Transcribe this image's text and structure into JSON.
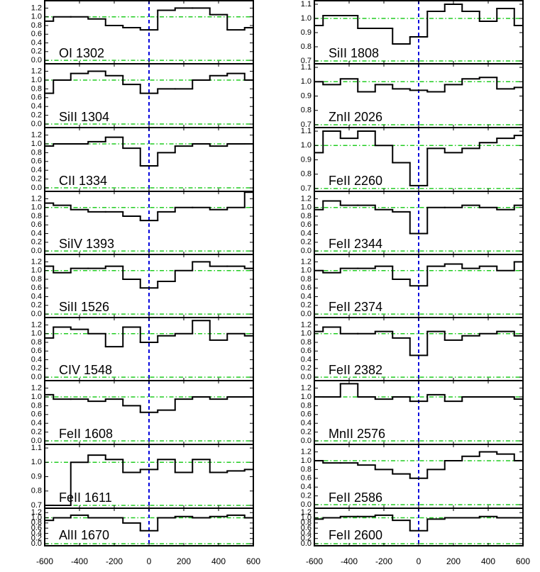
{
  "chart_data": [
    {
      "type": "line",
      "label": "OI 1302",
      "x": [
        -600,
        -500,
        -400,
        -300,
        -200,
        -100,
        0,
        100,
        200,
        300,
        400,
        500,
        600
      ],
      "values": [
        0.9,
        1.0,
        1.0,
        0.95,
        0.8,
        0.75,
        0.7,
        1.15,
        1.2,
        1.2,
        1.05,
        0.7,
        0.75
      ],
      "xlim": [
        -600,
        600
      ],
      "xticks": [
        -600,
        -400,
        -200,
        0,
        200,
        400,
        600
      ],
      "ylim": [
        -0.08,
        1.37
      ],
      "yticks": [
        0.0,
        0.2,
        0.4,
        0.6,
        0.8,
        1.0,
        1.2
      ],
      "hlines": [
        0.0,
        1.0
      ],
      "vline": 0
    },
    {
      "type": "line",
      "label": "SiII 1304",
      "x": [
        -600,
        -500,
        -400,
        -300,
        -200,
        -100,
        0,
        100,
        200,
        300,
        400,
        500,
        600
      ],
      "values": [
        0.7,
        1.0,
        1.15,
        1.2,
        1.1,
        0.9,
        0.7,
        0.8,
        0.8,
        1.0,
        1.1,
        1.15,
        1.0
      ],
      "xlim": [
        -600,
        600
      ],
      "xticks": [
        -600,
        -400,
        -200,
        0,
        200,
        400,
        600
      ],
      "ylim": [
        -0.08,
        1.37
      ],
      "yticks": [
        0.0,
        0.2,
        0.4,
        0.6,
        0.8,
        1.0,
        1.2
      ],
      "hlines": [
        0.0,
        1.0
      ],
      "vline": 0
    },
    {
      "type": "line",
      "label": "CII 1334",
      "x": [
        -600,
        -500,
        -400,
        -300,
        -200,
        -100,
        0,
        100,
        200,
        300,
        400,
        500,
        600
      ],
      "values": [
        0.95,
        1.0,
        1.0,
        1.05,
        1.15,
        0.9,
        0.5,
        0.8,
        0.95,
        1.0,
        0.95,
        1.0,
        1.0
      ],
      "xlim": [
        -600,
        600
      ],
      "xticks": [
        -600,
        -400,
        -200,
        0,
        200,
        400,
        600
      ],
      "ylim": [
        -0.08,
        1.37
      ],
      "yticks": [
        0.0,
        0.2,
        0.4,
        0.6,
        0.8,
        1.0,
        1.2
      ],
      "hlines": [
        0.0,
        1.0
      ],
      "vline": 0
    },
    {
      "type": "line",
      "label": "SiIV 1393",
      "x": [
        -600,
        -500,
        -400,
        -300,
        -200,
        -100,
        0,
        100,
        200,
        300,
        400,
        500,
        600
      ],
      "values": [
        1.1,
        1.05,
        0.95,
        0.9,
        0.9,
        0.8,
        0.7,
        0.9,
        1.0,
        1.0,
        0.95,
        1.0,
        1.35
      ],
      "xlim": [
        -600,
        600
      ],
      "xticks": [
        -600,
        -400,
        -200,
        0,
        200,
        400,
        600
      ],
      "ylim": [
        -0.08,
        1.37
      ],
      "yticks": [
        0.0,
        0.2,
        0.4,
        0.6,
        0.8,
        1.0,
        1.2
      ],
      "hlines": [
        0.0,
        1.0
      ],
      "vline": 0
    },
    {
      "type": "line",
      "label": "SiII 1526",
      "x": [
        -600,
        -500,
        -400,
        -300,
        -200,
        -100,
        0,
        100,
        200,
        300,
        400,
        500,
        600
      ],
      "values": [
        1.1,
        0.95,
        1.05,
        1.05,
        1.1,
        0.8,
        0.6,
        0.75,
        1.0,
        1.2,
        1.1,
        1.1,
        1.05
      ],
      "xlim": [
        -600,
        600
      ],
      "xticks": [
        -600,
        -400,
        -200,
        0,
        200,
        400,
        600
      ],
      "ylim": [
        -0.08,
        1.37
      ],
      "yticks": [
        0.0,
        0.2,
        0.4,
        0.6,
        0.8,
        1.0,
        1.2
      ],
      "hlines": [
        0.0,
        1.0
      ],
      "vline": 0
    },
    {
      "type": "line",
      "label": "CIV 1548",
      "x": [
        -600,
        -500,
        -400,
        -300,
        -200,
        -100,
        0,
        100,
        200,
        300,
        400,
        500,
        600
      ],
      "values": [
        0.9,
        1.15,
        1.1,
        1.0,
        0.7,
        1.15,
        0.8,
        0.95,
        1.0,
        1.3,
        0.85,
        1.0,
        0.95
      ],
      "xlim": [
        -600,
        600
      ],
      "xticks": [
        -600,
        -400,
        -200,
        0,
        200,
        400,
        600
      ],
      "ylim": [
        -0.08,
        1.37
      ],
      "yticks": [
        0.0,
        0.2,
        0.4,
        0.6,
        0.8,
        1.0,
        1.2
      ],
      "hlines": [
        0.0,
        1.0
      ],
      "vline": 0
    },
    {
      "type": "line",
      "label": "FeII 1608",
      "x": [
        -600,
        -500,
        -400,
        -300,
        -200,
        -100,
        0,
        100,
        200,
        300,
        400,
        500,
        600
      ],
      "values": [
        1.05,
        0.95,
        0.95,
        0.9,
        0.95,
        0.8,
        0.65,
        0.7,
        0.95,
        1.0,
        0.95,
        1.0,
        1.0
      ],
      "xlim": [
        -600,
        600
      ],
      "xticks": [
        -600,
        -400,
        -200,
        0,
        200,
        400,
        600
      ],
      "ylim": [
        -0.08,
        1.37
      ],
      "yticks": [
        0.0,
        0.2,
        0.4,
        0.6,
        0.8,
        1.0,
        1.2
      ],
      "hlines": [
        0.0,
        1.0
      ],
      "vline": 0
    },
    {
      "type": "line",
      "label": "FeII 1611",
      "x": [
        -600,
        -500,
        -400,
        -300,
        -200,
        -100,
        0,
        100,
        200,
        300,
        400,
        500,
        600
      ],
      "values": [
        0.7,
        0.7,
        1.0,
        1.05,
        1.02,
        0.93,
        0.95,
        1.02,
        0.93,
        1.02,
        0.93,
        0.94,
        0.95
      ],
      "xlim": [
        -600,
        600
      ],
      "xticks": [
        -600,
        -400,
        -200,
        0,
        200,
        400,
        600
      ],
      "ylim": [
        0.68,
        1.125
      ],
      "yticks": [
        0.7,
        0.8,
        0.9,
        1.0,
        1.1
      ],
      "hlines": [
        0.7,
        1.0
      ],
      "vline": 0
    },
    {
      "type": "line",
      "label": "AlII 1670",
      "x": [
        -600,
        -500,
        -400,
        -300,
        -200,
        -100,
        0,
        100,
        200,
        300,
        400,
        500,
        600
      ],
      "values": [
        0.9,
        1.0,
        1.1,
        1.0,
        1.0,
        0.8,
        0.5,
        1.0,
        1.05,
        1.0,
        1.05,
        1.1,
        1.0
      ],
      "xlim": [
        -600,
        600
      ],
      "xticks": [
        -600,
        -400,
        -200,
        0,
        200,
        400,
        600
      ],
      "ylim": [
        -0.08,
        1.37
      ],
      "yticks": [
        0.0,
        0.2,
        0.4,
        0.6,
        0.8,
        1.0,
        1.2
      ],
      "hlines": [
        0.0,
        1.0
      ],
      "vline": 0
    },
    {
      "type": "line",
      "label": "SiII 1808",
      "x": [
        -600,
        -500,
        -400,
        -300,
        -200,
        -100,
        0,
        100,
        200,
        300,
        400,
        500,
        600
      ],
      "values": [
        0.95,
        1.02,
        1.02,
        0.93,
        0.93,
        0.82,
        0.87,
        1.05,
        1.1,
        1.05,
        0.98,
        1.07,
        0.95
      ],
      "xlim": [
        -600,
        600
      ],
      "xticks": [
        -600,
        -400,
        -200,
        0,
        200,
        400,
        600
      ],
      "ylim": [
        0.68,
        1.125
      ],
      "yticks": [
        0.7,
        0.8,
        0.9,
        1.0,
        1.1
      ],
      "hlines": [
        0.7,
        1.0
      ],
      "vline": 0
    },
    {
      "type": "line",
      "label": "ZnII 2026",
      "x": [
        -600,
        -500,
        -400,
        -300,
        -200,
        -100,
        0,
        100,
        200,
        300,
        400,
        500,
        600
      ],
      "values": [
        1.0,
        0.98,
        1.02,
        0.93,
        0.98,
        0.95,
        0.94,
        0.93,
        0.98,
        1.02,
        1.03,
        0.95,
        0.96
      ],
      "xlim": [
        -600,
        600
      ],
      "xticks": [
        -600,
        -400,
        -200,
        0,
        200,
        400,
        600
      ],
      "ylim": [
        0.68,
        1.125
      ],
      "yticks": [
        0.7,
        0.8,
        0.9,
        1.0,
        1.1
      ],
      "hlines": [
        0.7,
        1.0
      ],
      "vline": 0
    },
    {
      "type": "line",
      "label": "FeII 2260",
      "x": [
        -600,
        -500,
        -400,
        -300,
        -200,
        -100,
        0,
        100,
        200,
        300,
        400,
        500,
        600
      ],
      "values": [
        0.95,
        1.1,
        1.05,
        1.1,
        1.0,
        0.88,
        0.72,
        0.98,
        0.95,
        0.98,
        1.02,
        1.05,
        1.07
      ],
      "xlim": [
        -600,
        600
      ],
      "xticks": [
        -600,
        -400,
        -200,
        0,
        200,
        400,
        600
      ],
      "ylim": [
        0.68,
        1.125
      ],
      "yticks": [
        0.7,
        0.8,
        0.9,
        1.0,
        1.1
      ],
      "hlines": [
        0.7,
        1.0
      ],
      "vline": 0
    },
    {
      "type": "line",
      "label": "FeII 2344",
      "x": [
        -600,
        -500,
        -400,
        -300,
        -200,
        -100,
        0,
        100,
        200,
        300,
        400,
        500,
        600
      ],
      "values": [
        0.95,
        1.15,
        1.05,
        1.05,
        0.95,
        0.9,
        0.4,
        1.0,
        1.0,
        1.05,
        1.0,
        0.95,
        1.05
      ],
      "xlim": [
        -600,
        600
      ],
      "xticks": [
        -600,
        -400,
        -200,
        0,
        200,
        400,
        600
      ],
      "ylim": [
        -0.08,
        1.37
      ],
      "yticks": [
        0.0,
        0.2,
        0.4,
        0.6,
        0.8,
        1.0,
        1.2
      ],
      "hlines": [
        0.0,
        1.0
      ],
      "vline": 0
    },
    {
      "type": "line",
      "label": "FeII 2374",
      "x": [
        -600,
        -500,
        -400,
        -300,
        -200,
        -100,
        0,
        100,
        200,
        300,
        400,
        500,
        600
      ],
      "values": [
        1.0,
        0.95,
        1.05,
        1.05,
        1.1,
        0.8,
        0.65,
        1.1,
        1.15,
        1.05,
        1.1,
        1.0,
        1.2
      ],
      "xlim": [
        -600,
        600
      ],
      "xticks": [
        -600,
        -400,
        -200,
        0,
        200,
        400,
        600
      ],
      "ylim": [
        -0.08,
        1.37
      ],
      "yticks": [
        0.0,
        0.2,
        0.4,
        0.6,
        0.8,
        1.0,
        1.2
      ],
      "hlines": [
        0.0,
        1.0
      ],
      "vline": 0
    },
    {
      "type": "line",
      "label": "FeII 2382",
      "x": [
        -600,
        -500,
        -400,
        -300,
        -200,
        -100,
        0,
        100,
        200,
        300,
        400,
        500,
        600
      ],
      "values": [
        1.05,
        1.15,
        1.0,
        1.0,
        1.05,
        0.9,
        0.5,
        1.05,
        0.85,
        0.95,
        1.0,
        1.05,
        0.95
      ],
      "xlim": [
        -600,
        600
      ],
      "xticks": [
        -600,
        -400,
        -200,
        0,
        200,
        400,
        600
      ],
      "ylim": [
        -0.08,
        1.37
      ],
      "yticks": [
        0.0,
        0.2,
        0.4,
        0.6,
        0.8,
        1.0,
        1.2
      ],
      "hlines": [
        0.0,
        1.0
      ],
      "vline": 0
    },
    {
      "type": "line",
      "label": "MnII 2576",
      "x": [
        -600,
        -500,
        -400,
        -300,
        -200,
        -100,
        0,
        100,
        200,
        300,
        400,
        500,
        600
      ],
      "values": [
        1.0,
        1.0,
        1.3,
        1.0,
        0.95,
        1.0,
        0.9,
        1.05,
        0.9,
        1.0,
        1.0,
        1.0,
        0.95
      ],
      "xlim": [
        -600,
        600
      ],
      "xticks": [
        -600,
        -400,
        -200,
        0,
        200,
        400,
        600
      ],
      "ylim": [
        -0.08,
        1.37
      ],
      "yticks": [
        0.0,
        0.2,
        0.4,
        0.6,
        0.8,
        1.0,
        1.2
      ],
      "hlines": [
        0.0,
        1.0
      ],
      "vline": 0
    },
    {
      "type": "line",
      "label": "FeII 2586",
      "x": [
        -600,
        -500,
        -400,
        -300,
        -200,
        -100,
        0,
        100,
        200,
        300,
        400,
        500,
        600
      ],
      "values": [
        1.0,
        0.95,
        0.95,
        0.9,
        0.8,
        0.7,
        0.6,
        0.8,
        1.0,
        1.1,
        1.2,
        1.15,
        1.0
      ],
      "xlim": [
        -600,
        600
      ],
      "xticks": [
        -600,
        -400,
        -200,
        0,
        200,
        400,
        600
      ],
      "ylim": [
        -0.08,
        1.37
      ],
      "yticks": [
        0.0,
        0.2,
        0.4,
        0.6,
        0.8,
        1.0,
        1.2
      ],
      "hlines": [
        0.0,
        1.0
      ],
      "vline": 0
    },
    {
      "type": "line",
      "label": "FeII 2600",
      "x": [
        -600,
        -500,
        -400,
        -300,
        -200,
        -100,
        0,
        100,
        200,
        300,
        400,
        500,
        600
      ],
      "values": [
        0.95,
        1.0,
        1.05,
        1.05,
        1.1,
        0.9,
        0.5,
        0.95,
        1.0,
        1.0,
        1.05,
        1.0,
        1.0
      ],
      "xlim": [
        -600,
        600
      ],
      "xticks": [
        -600,
        -400,
        -200,
        0,
        200,
        400,
        600
      ],
      "ylim": [
        -0.08,
        1.37
      ],
      "yticks": [
        0.0,
        0.2,
        0.4,
        0.6,
        0.8,
        1.0,
        1.2
      ],
      "hlines": [
        0.0,
        1.0
      ],
      "vline": 0
    }
  ]
}
